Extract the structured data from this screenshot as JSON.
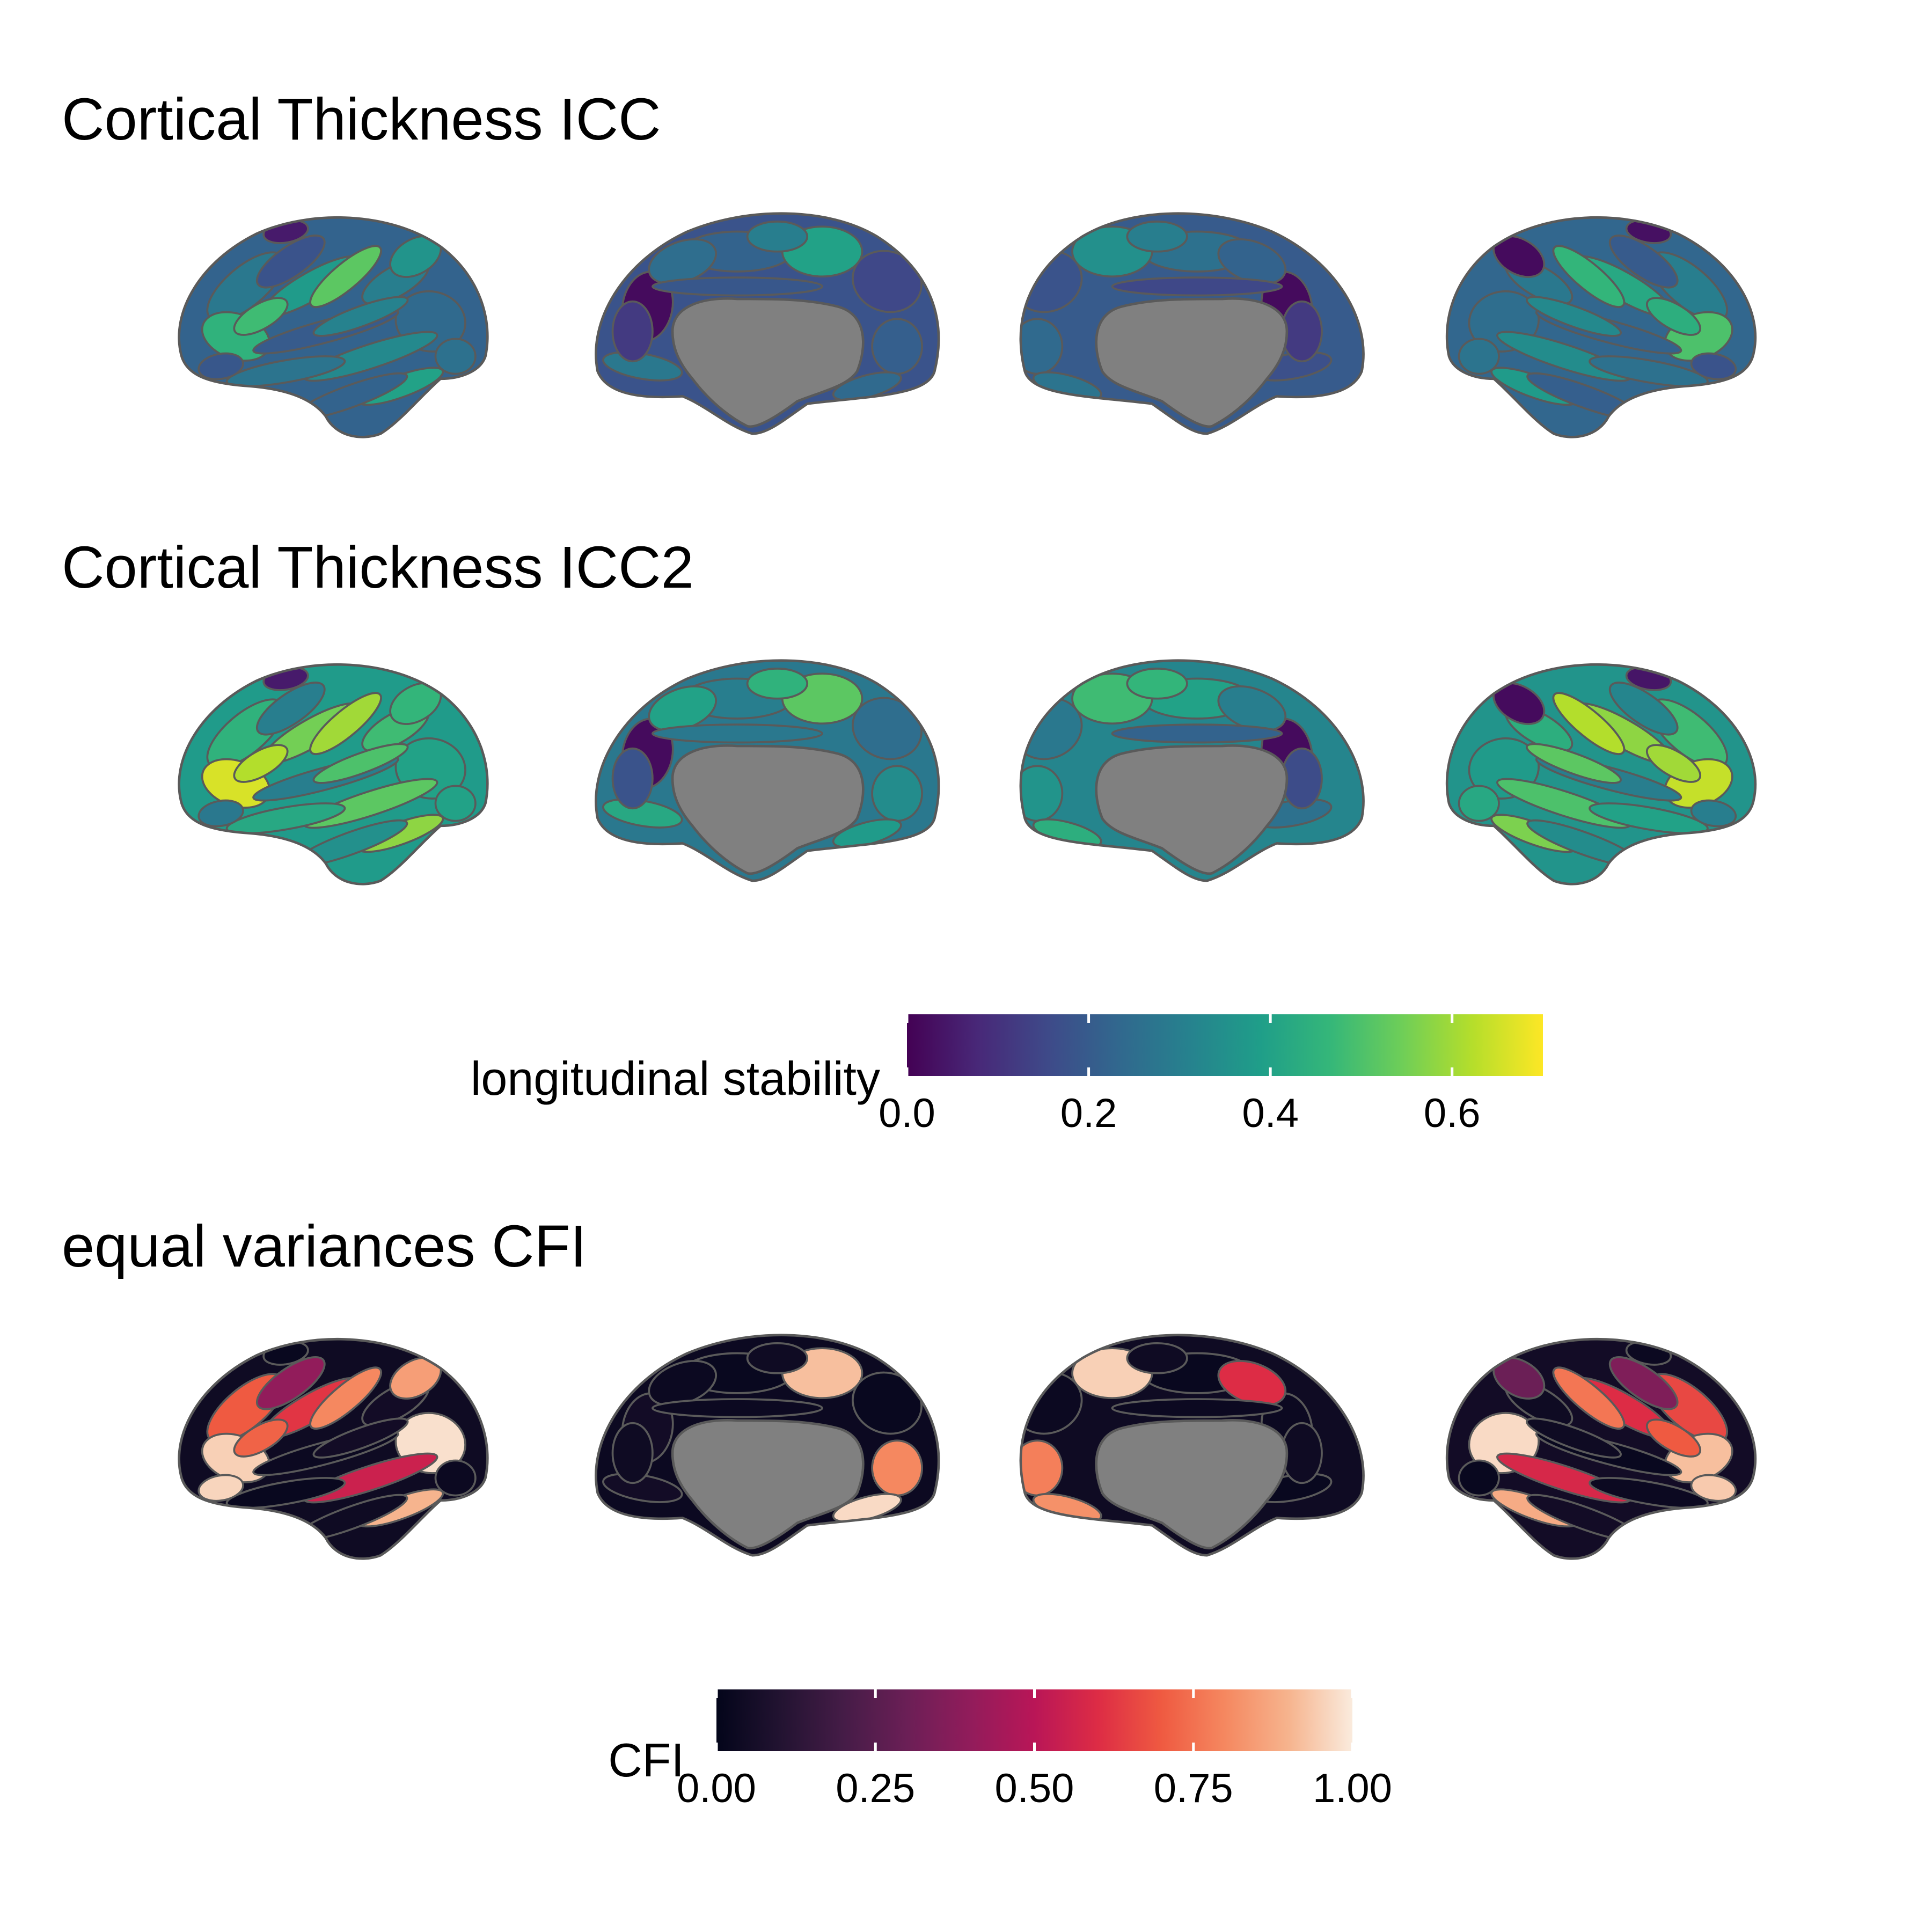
{
  "panels": [
    {
      "title": "Cortical Thickness ICC",
      "palette": "viridis",
      "views": [
        {
          "view": "lateral-left",
          "base": 0.22,
          "regions": [
            0.28,
            0.18,
            0.45,
            0.38,
            0.05,
            0.52,
            0.3,
            0.24,
            0.2,
            0.33,
            0.27,
            0.4,
            0.22,
            0.48,
            0.26,
            0.19,
            0.31,
            0.36
          ]
        },
        {
          "view": "medial-left",
          "base": 0.18,
          "regions": [
            0.22,
            0.02,
            0.4,
            0.25,
            0.3,
            0.15,
            0.21,
            0.28,
            0.0,
            0.24,
            0.19,
            0.12
          ]
        },
        {
          "view": "medial-right",
          "base": 0.2,
          "regions": [
            0.26,
            0.02,
            0.35,
            0.22,
            0.3,
            0.18,
            0.24,
            0.17,
            0.0,
            0.27,
            0.15,
            0.12
          ]
        },
        {
          "view": "lateral-right",
          "base": 0.23,
          "regions": [
            0.3,
            0.2,
            0.5,
            0.42,
            0.03,
            0.46,
            0.28,
            0.25,
            0.22,
            0.34,
            0.26,
            0.38,
            0.21,
            0.44,
            0.27,
            0.18,
            0.33,
            0.02
          ]
        }
      ]
    },
    {
      "title": "Cortical Thickness ICC2",
      "palette": "viridis",
      "views": [
        {
          "view": "lateral-left",
          "base": 0.38,
          "regions": [
            0.45,
            0.3,
            0.66,
            0.55,
            0.05,
            0.6,
            0.48,
            0.4,
            0.3,
            0.52,
            0.42,
            0.58,
            0.35,
            0.62,
            0.4,
            0.28,
            0.5,
            0.46
          ]
        },
        {
          "view": "medial-left",
          "base": 0.28,
          "regions": [
            0.3,
            0.02,
            0.52,
            0.4,
            0.45,
            0.25,
            0.34,
            0.42,
            0.0,
            0.38,
            0.28,
            0.18
          ]
        },
        {
          "view": "medial-right",
          "base": 0.32,
          "regions": [
            0.4,
            0.02,
            0.48,
            0.3,
            0.46,
            0.28,
            0.36,
            0.26,
            0.0,
            0.44,
            0.22,
            0.16
          ]
        },
        {
          "view": "lateral-right",
          "base": 0.36,
          "regions": [
            0.48,
            0.32,
            0.64,
            0.58,
            0.04,
            0.62,
            0.44,
            0.38,
            0.3,
            0.5,
            0.4,
            0.56,
            0.34,
            0.6,
            0.42,
            0.3,
            0.52,
            0.02
          ]
        }
      ]
    },
    {
      "title": "equal variances CFI",
      "palette": "rocket",
      "views": [
        {
          "view": "lateral-left",
          "base": 0.04,
          "regions": [
            0.7,
            0.4,
            0.95,
            0.62,
            0.02,
            0.8,
            0.05,
            0.98,
            0.03,
            0.55,
            0.02,
            0.9,
            0.04,
            0.72,
            0.03,
            0.96,
            0.05,
            0.85
          ]
        },
        {
          "view": "medial-left",
          "base": 0.03,
          "regions": [
            0.02,
            0.05,
            0.92,
            0.03,
            0.04,
            0.02,
            0.8,
            0.05,
            0.02,
            0.97,
            0.03,
            0.04
          ]
        },
        {
          "view": "medial-right",
          "base": 0.04,
          "regions": [
            0.02,
            0.03,
            0.95,
            0.6,
            0.04,
            0.03,
            0.78,
            0.02,
            0.05,
            0.82,
            0.03,
            0.04
          ]
        },
        {
          "view": "lateral-right",
          "base": 0.05,
          "regions": [
            0.66,
            0.35,
            0.92,
            0.6,
            0.03,
            0.76,
            0.04,
            0.97,
            0.02,
            0.58,
            0.03,
            0.88,
            0.05,
            0.7,
            0.02,
            0.94,
            0.04,
            0.3
          ]
        }
      ]
    }
  ],
  "legends": [
    {
      "title": "longitudinal stability",
      "palette": "viridis",
      "min": 0.0,
      "max": 0.7,
      "ticks": [
        "0.0",
        "0.2",
        "0.4",
        "0.6"
      ],
      "tick_values": [
        0.0,
        0.2,
        0.4,
        0.6
      ]
    },
    {
      "title": "CFI",
      "palette": "rocket",
      "min": 0.0,
      "max": 1.0,
      "ticks": [
        "0.00",
        "0.25",
        "0.50",
        "0.75",
        "1.00"
      ],
      "tick_values": [
        0.0,
        0.25,
        0.5,
        0.75,
        1.0
      ]
    }
  ],
  "colors": {
    "viridis": [
      "#440154",
      "#482878",
      "#3e4a89",
      "#31688e",
      "#26828e",
      "#1f9e89",
      "#35b779",
      "#6ece58",
      "#b5de2b",
      "#fde725"
    ],
    "rocket": [
      "#03051a",
      "#221331",
      "#451c47",
      "#6b1f56",
      "#921c5b",
      "#b91657",
      "#dd2c45",
      "#ef5a41",
      "#f58860",
      "#f6b48e",
      "#faebdd"
    ],
    "subcortex": "#808080",
    "outline": "#5a5a5a"
  }
}
